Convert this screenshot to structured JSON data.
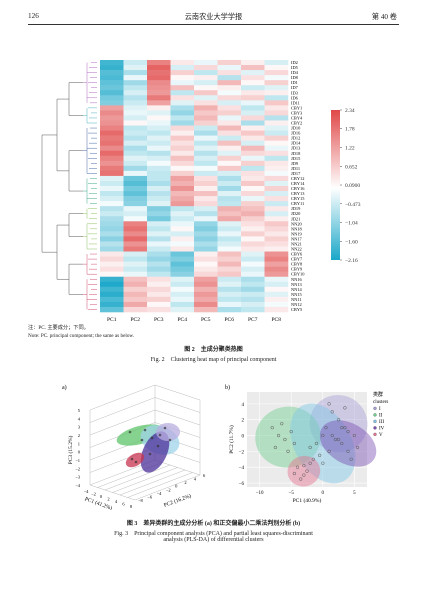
{
  "header": {
    "page_number": "126",
    "journal": "云南农业大学学报",
    "volume": "第 40 卷"
  },
  "fig2": {
    "note_cn": "注：PC. 主要成分；下同。",
    "note_en": "Note: PC. principal component; the same as below.",
    "caption_cn": "图 2　主成分聚类热图",
    "caption_en": "Fig. 2　Clustering heat map of principal component"
  },
  "fig3": {
    "panel_a": "a)",
    "panel_b": "b)",
    "caption_cn": "图 3　差异类群的主成分分析 (a) 和正交偏最小二乘法判别分析 (b)",
    "caption_en_line1": "Fig. 3　Principal component analysis (PCA) and partial least squares-discriminant",
    "caption_en_line2": "analysis (PLS-DA) of differential clusters"
  },
  "heatmap_colors": {
    "low": "#1aa7c8",
    "mid": "#ffffff",
    "high": "#e04848"
  },
  "chart_data": [
    {
      "type": "heatmap",
      "columns": [
        "PC1",
        "PC2",
        "PC3",
        "PC4",
        "PC5",
        "PC6",
        "PC7",
        "PC8"
      ],
      "colorbar_ticks": [
        "2.34",
        "1.78",
        "1.22",
        "0.652",
        "0.0900",
        "-0.473",
        "-1.04",
        "-1.60",
        "-2.16"
      ],
      "colorbar_range": [
        -2.16,
        2.34
      ],
      "row_labels": [
        "ID2",
        "ID5",
        "ID4",
        "ID8",
        "ID1",
        "ID7",
        "ID3",
        "ID6",
        "ID11",
        "CBY1",
        "CBY3",
        "CBY4",
        "CBY2",
        "JD10",
        "JD16",
        "JD12",
        "JD14",
        "JD13",
        "JD18",
        "JD15",
        "JD9",
        "JD11",
        "JD17",
        "CBY12",
        "CBY14",
        "CBY16",
        "CBY13",
        "CBY15",
        "CBY11",
        "JD19",
        "JD20",
        "JD21",
        "NN20",
        "NN18",
        "NN19",
        "NN17",
        "NN21",
        "NN22",
        "CBY6",
        "CBY7",
        "CBY8",
        "CBY9",
        "CBY10",
        "NN16",
        "NN13",
        "NN14",
        "NN15",
        "NN11",
        "NN12",
        "CBY5"
      ],
      "values": [
        [
          -1.8,
          -0.5,
          1.6,
          0.3,
          -0.2,
          0.6,
          0.2,
          -0.4
        ],
        [
          -1.9,
          -0.3,
          2.0,
          -0.4,
          0.5,
          -0.2,
          0.8,
          0.1
        ],
        [
          -1.6,
          -0.8,
          1.8,
          0.6,
          -0.6,
          0.4,
          -0.3,
          0.5
        ],
        [
          -1.7,
          -0.2,
          1.9,
          0.1,
          0.2,
          -0.7,
          0.4,
          -0.1
        ],
        [
          -1.5,
          -0.9,
          1.5,
          -0.2,
          -0.4,
          0.9,
          0.1,
          0.6
        ],
        [
          -1.4,
          -0.6,
          1.4,
          0.8,
          0.1,
          0.2,
          -0.5,
          -0.3
        ],
        [
          -1.6,
          -0.4,
          1.3,
          -0.6,
          0.7,
          -0.1,
          0.3,
          0.2
        ],
        [
          -1.3,
          -0.7,
          1.7,
          0.4,
          -0.3,
          0.5,
          0.6,
          -0.6
        ],
        [
          -1.2,
          -0.5,
          1.2,
          -0.3,
          0.4,
          -0.4,
          -0.2,
          0.7
        ],
        [
          1.2,
          -0.3,
          0.2,
          -0.8,
          1.0,
          0.4,
          -0.6,
          0.3
        ],
        [
          1.5,
          -0.2,
          -0.3,
          -1.0,
          0.7,
          0.6,
          -0.4,
          0.5
        ],
        [
          1.3,
          -0.4,
          0.1,
          -0.6,
          0.9,
          -0.2,
          0.5,
          -0.7
        ],
        [
          1.4,
          0.1,
          -0.2,
          -0.9,
          0.6,
          0.3,
          -0.8,
          0.2
        ],
        [
          1.6,
          -0.6,
          -0.4,
          0.5,
          -0.5,
          0.9,
          0.2,
          -0.3
        ],
        [
          1.9,
          -0.5,
          -0.6,
          0.2,
          -0.8,
          0.4,
          0.7,
          -0.5
        ],
        [
          1.7,
          -0.7,
          -0.3,
          0.7,
          -0.2,
          -0.5,
          0.3,
          0.6
        ],
        [
          1.8,
          -0.4,
          -0.5,
          0.4,
          -0.6,
          0.8,
          -0.4,
          0.1
        ],
        [
          1.5,
          -0.8,
          -0.2,
          0.6,
          -0.3,
          0.2,
          0.9,
          -0.2
        ],
        [
          1.9,
          -0.6,
          -0.7,
          0.3,
          -0.7,
          -0.3,
          0.5,
          0.4
        ],
        [
          1.6,
          -0.3,
          -0.4,
          0.8,
          -0.4,
          0.6,
          -0.2,
          -0.6
        ],
        [
          1.4,
          -0.5,
          -0.1,
          0.5,
          -0.6,
          0.1,
          0.6,
          0.3
        ],
        [
          1.7,
          -0.9,
          -0.5,
          0.1,
          -0.1,
          0.7,
          -0.6,
          0.2
        ],
        [
          1.8,
          -0.2,
          -0.6,
          0.6,
          -0.5,
          -0.4,
          0.4,
          -0.1
        ],
        [
          -0.3,
          -1.4,
          -0.6,
          1.2,
          0.4,
          -0.8,
          0.3,
          0.5
        ],
        [
          -0.5,
          -1.6,
          -0.8,
          1.0,
          0.6,
          -0.5,
          0.7,
          -0.3
        ],
        [
          -0.2,
          -1.3,
          -0.4,
          1.4,
          0.2,
          -0.9,
          0.1,
          0.6
        ],
        [
          -0.6,
          -1.5,
          -0.7,
          0.9,
          0.8,
          -0.3,
          0.5,
          -0.4
        ],
        [
          -0.4,
          -1.2,
          -0.5,
          1.1,
          0.3,
          -0.7,
          -0.2,
          0.4
        ],
        [
          -0.1,
          -1.1,
          -0.3,
          1.3,
          0.5,
          -0.6,
          0.6,
          -0.5
        ],
        [
          -0.7,
          -0.2,
          -1.2,
          -0.6,
          -0.4,
          1.0,
          0.8,
          0.3
        ],
        [
          -0.5,
          -0.4,
          -1.0,
          -0.3,
          -0.7,
          0.8,
          1.0,
          -0.4
        ],
        [
          -0.8,
          -0.1,
          -1.3,
          -0.5,
          -0.2,
          1.1,
          0.6,
          0.2
        ],
        [
          -0.9,
          1.6,
          -0.4,
          -0.2,
          -1.0,
          -0.3,
          0.4,
          0.7
        ],
        [
          -1.0,
          1.8,
          -0.6,
          0.1,
          -1.2,
          -0.5,
          0.2,
          0.5
        ],
        [
          -0.8,
          1.5,
          -0.3,
          -0.4,
          -0.9,
          -0.2,
          0.6,
          0.3
        ],
        [
          -1.1,
          1.9,
          -0.7,
          0.2,
          -1.1,
          -0.6,
          0.1,
          0.6
        ],
        [
          -0.7,
          1.4,
          -0.2,
          -0.1,
          -0.8,
          -0.4,
          0.5,
          0.4
        ],
        [
          -0.9,
          1.7,
          -0.5,
          0.3,
          -1.0,
          -0.1,
          0.3,
          0.2
        ],
        [
          0.3,
          -0.4,
          -0.8,
          -1.4,
          0.2,
          0.8,
          -0.3,
          1.4
        ],
        [
          0.5,
          -0.6,
          -1.0,
          -1.2,
          0.4,
          0.6,
          -0.5,
          1.6
        ],
        [
          0.2,
          -0.3,
          -0.7,
          -1.5,
          0.1,
          0.9,
          -0.1,
          1.2
        ],
        [
          0.4,
          -0.5,
          -0.9,
          -1.3,
          0.3,
          0.5,
          -0.4,
          1.5
        ],
        [
          0.1,
          -0.2,
          -0.6,
          -1.1,
          0.5,
          0.7,
          -0.2,
          1.3
        ],
        [
          -1.9,
          0.8,
          0.4,
          -0.3,
          1.2,
          -0.5,
          -0.8,
          -0.2
        ],
        [
          -2.1,
          1.0,
          0.2,
          -0.5,
          1.4,
          -0.3,
          -0.6,
          -0.4
        ],
        [
          -1.8,
          0.6,
          0.5,
          -0.1,
          1.0,
          -0.7,
          -0.9,
          0.1
        ],
        [
          -2.0,
          0.9,
          0.3,
          -0.4,
          1.3,
          -0.4,
          -0.5,
          -0.3
        ],
        [
          -1.7,
          0.7,
          0.6,
          -0.2,
          1.1,
          -0.6,
          -0.7,
          0.2
        ],
        [
          -1.9,
          1.1,
          0.1,
          -0.6,
          1.5,
          -0.2,
          -0.4,
          -0.1
        ],
        [
          -1.5,
          0.5,
          0.4,
          -0.3,
          0.9,
          -0.8,
          -0.6,
          0.3
        ]
      ]
    },
    {
      "type": "scatter",
      "subtype": "3d-pca",
      "axes": {
        "x": "PC1 (41.2%)",
        "y": "PC2 (16.2%)",
        "z": "PC3 (15.2%)"
      },
      "x_ticks": [
        "-4",
        "-2",
        "0",
        "2",
        "4",
        "6",
        "8"
      ],
      "y_ticks": [
        "-8",
        "-6",
        "-4",
        "-2",
        "0",
        "2",
        "4",
        "6"
      ],
      "z_ticks": [
        "-4",
        "-3",
        "-2",
        "-1",
        "0",
        "1",
        "2",
        "3",
        "4",
        "5"
      ]
    },
    {
      "type": "scatter",
      "subtype": "pls-da",
      "xlabel": "PC1 (40.9%)",
      "ylabel": "PC2 (11.7%)",
      "xlim": [
        -12,
        7
      ],
      "ylim": [
        -6.5,
        5.5
      ],
      "x_ticks": [
        "-10",
        "-5",
        "0",
        "5"
      ],
      "y_ticks": [
        "-6",
        "-4",
        "-2",
        "0",
        "2",
        "4"
      ],
      "legend": {
        "title_cn": "类群",
        "title_en": "clusters",
        "entries": [
          "I",
          "II",
          "III",
          "IV",
          "V"
        ],
        "position": "right"
      },
      "colors": {
        "I": "#aaa0d6",
        "II": "#6fcf8f",
        "III": "#7fc7e6",
        "IV": "#7b4fb3",
        "V": "#e7728f"
      },
      "series": [
        {
          "name": "I",
          "x": [
            1.5,
            2.5,
            3.0,
            4.0,
            2.0,
            3.5,
            1.0
          ],
          "y": [
            3.0,
            2.0,
            1.0,
            0.5,
            -0.5,
            3.5,
            4.0
          ]
        },
        {
          "name": "II",
          "x": [
            -8,
            -7,
            -6,
            -7.5,
            -5,
            -6.5,
            -4.5,
            -5.5
          ],
          "y": [
            1.0,
            0.0,
            -0.5,
            -1.5,
            0.5,
            1.5,
            -1.0,
            -2.0
          ]
        },
        {
          "name": "III",
          "x": [
            -1,
            0,
            1,
            -2,
            0.5,
            -1.5,
            1.5,
            0,
            -0.5
          ],
          "y": [
            -1,
            0,
            -2,
            -1.5,
            1,
            -3,
            0,
            -3.5,
            -2.5
          ]
        },
        {
          "name": "IV",
          "x": [
            3,
            4,
            5,
            3.5,
            4.5,
            2.5,
            5.5
          ],
          "y": [
            -1,
            -2,
            0,
            1,
            -3,
            -0.5,
            -1.5
          ]
        },
        {
          "name": "V",
          "x": [
            -4,
            -3,
            -2.5,
            -3.5,
            -2,
            -4.5,
            -3
          ],
          "y": [
            -4,
            -5,
            -4.5,
            -5.5,
            -3.5,
            -4.8,
            -3.8
          ]
        }
      ],
      "ellipses": [
        {
          "name": "I",
          "cx": 2.5,
          "cy": 1.5,
          "rx": 4.5,
          "ry": 2.3,
          "angle": -55
        },
        {
          "name": "II",
          "cx": -5.5,
          "cy": -0.2,
          "rx": 5.2,
          "ry": 2.4,
          "angle": -10
        },
        {
          "name": "III",
          "cx": 0,
          "cy": -1.0,
          "rx": 4.5,
          "ry": 3.4,
          "angle": -30
        },
        {
          "name": "IV",
          "cx": 4,
          "cy": -1.0,
          "rx": 3.2,
          "ry": 2.4,
          "angle": -60
        },
        {
          "name": "V",
          "cx": -3,
          "cy": -4.5,
          "rx": 2.6,
          "ry": 1.2,
          "angle": -15
        }
      ]
    }
  ]
}
